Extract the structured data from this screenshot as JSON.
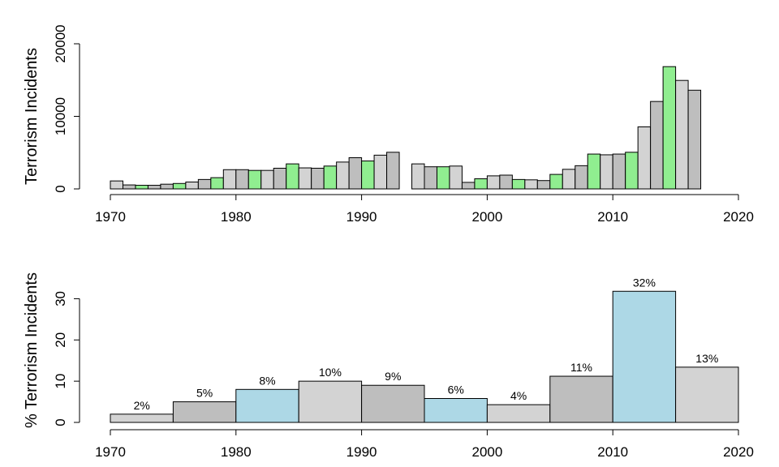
{
  "chart_data": [
    {
      "type": "bar",
      "ylabel": "Terrorism Incidents",
      "xlim": [
        1970,
        2020
      ],
      "ylim": [
        0,
        20000
      ],
      "x_ticks": [
        1970,
        1980,
        1990,
        2000,
        2010,
        2020
      ],
      "y_ticks": [
        0,
        10000,
        20000
      ],
      "x_tick_labels": [
        "1970",
        "1980",
        "1990",
        "2000",
        "2010",
        "2020"
      ],
      "y_tick_labels": [
        "0",
        "10000",
        "20000"
      ],
      "colors": {
        "green": "#90ee90",
        "light": "#d3d3d3",
        "dark": "#bebebe"
      },
      "years": [
        1970,
        1971,
        1972,
        1973,
        1974,
        1975,
        1976,
        1977,
        1978,
        1979,
        1980,
        1981,
        1982,
        1983,
        1984,
        1985,
        1986,
        1987,
        1988,
        1989,
        1990,
        1991,
        1992,
        1993,
        1994,
        1995,
        1996,
        1997,
        1998,
        1999,
        2000,
        2001,
        2002,
        2003,
        2004,
        2005,
        2006,
        2007,
        2008,
        2009,
        2010,
        2011,
        2012,
        2013,
        2014,
        2015,
        2016
      ],
      "values": [
        1100,
        550,
        500,
        500,
        650,
        750,
        950,
        1300,
        1550,
        2650,
        2650,
        2550,
        2550,
        2850,
        3450,
        2900,
        2850,
        3150,
        3700,
        4300,
        3850,
        4650,
        5050,
        null,
        3450,
        3050,
        3050,
        3150,
        900,
        1400,
        1800,
        1900,
        1300,
        1250,
        1150,
        2000,
        2700,
        3200,
        4800,
        4700,
        4800,
        5050,
        8550,
        12050,
        16850,
        14950,
        13600
      ],
      "bar_colors": [
        "light",
        "dark",
        "green",
        "dark",
        "dark",
        "green",
        "light",
        "dark",
        "green",
        "light",
        "dark",
        "green",
        "light",
        "dark",
        "green",
        "light",
        "dark",
        "green",
        "light",
        "dark",
        "green",
        "light",
        "dark",
        "green",
        "light",
        "dark",
        "green",
        "light",
        "dark",
        "green",
        "light",
        "dark",
        "green",
        "light",
        "dark",
        "green",
        "light",
        "dark",
        "green",
        "light",
        "dark",
        "green",
        "light",
        "dark",
        "green",
        "light",
        "dark"
      ]
    },
    {
      "type": "bar",
      "ylabel": "% Terrorism Incidents",
      "xlim": [
        1970,
        2020
      ],
      "ylim": [
        0,
        35
      ],
      "x_ticks": [
        1970,
        1980,
        1990,
        2000,
        2010,
        2020
      ],
      "y_ticks": [
        0,
        10,
        20,
        30
      ],
      "x_tick_labels": [
        "1970",
        "1980",
        "1990",
        "2000",
        "2010",
        "2020"
      ],
      "y_tick_labels": [
        "0",
        "10",
        "20",
        "30"
      ],
      "colors": {
        "blue": "#add8e6",
        "light": "#d3d3d3",
        "dark": "#bebebe"
      },
      "bins": [
        {
          "start": 1970,
          "end": 1975,
          "value": 2,
          "label": "2%",
          "color": "light"
        },
        {
          "start": 1975,
          "end": 1980,
          "value": 5,
          "label": "5%",
          "color": "dark"
        },
        {
          "start": 1980,
          "end": 1985,
          "value": 8,
          "label": "8%",
          "color": "blue"
        },
        {
          "start": 1985,
          "end": 1990,
          "value": 10,
          "label": "10%",
          "color": "light"
        },
        {
          "start": 1990,
          "end": 1995,
          "value": 9,
          "label": "9%",
          "color": "dark"
        },
        {
          "start": 1995,
          "end": 2000,
          "value": 5.8,
          "label": "6%",
          "color": "blue"
        },
        {
          "start": 2000,
          "end": 2005,
          "value": 4.3,
          "label": "4%",
          "color": "light"
        },
        {
          "start": 2005,
          "end": 2010,
          "value": 11.2,
          "label": "11%",
          "color": "dark"
        },
        {
          "start": 2010,
          "end": 2015,
          "value": 31.8,
          "label": "32%",
          "color": "blue"
        },
        {
          "start": 2015,
          "end": 2020,
          "value": 13.4,
          "label": "13%",
          "color": "light"
        }
      ]
    }
  ]
}
